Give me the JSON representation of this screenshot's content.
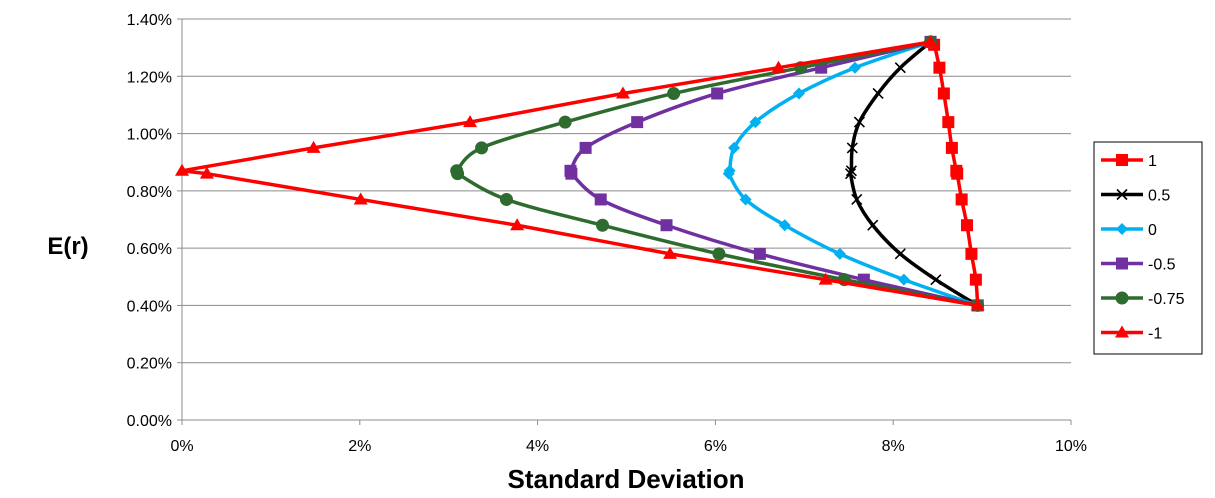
{
  "chart_data": {
    "type": "line",
    "xlabel": "Standard Deviation",
    "ylabel": "E(r)",
    "xlim": [
      0,
      10
    ],
    "ylim": [
      0,
      1.4
    ],
    "x_unit": "%",
    "y_unit": "%",
    "x_ticks": [
      "0%",
      "2%",
      "4%",
      "6%",
      "8%",
      "10%"
    ],
    "y_ticks": [
      "0.00%",
      "0.20%",
      "0.40%",
      "0.60%",
      "0.80%",
      "1.00%",
      "1.20%",
      "1.40%"
    ],
    "grid": "horizontal",
    "legend_position": "right",
    "series": [
      {
        "name": "1",
        "color": "#ff0000",
        "marker": "square",
        "x": [
          8.95,
          8.93,
          8.88,
          8.83,
          8.77,
          8.72,
          8.71,
          8.66,
          8.62,
          8.57,
          8.52,
          8.46,
          8.42
        ],
        "y": [
          0.4,
          0.49,
          0.58,
          0.68,
          0.77,
          0.86,
          0.87,
          0.95,
          1.04,
          1.14,
          1.23,
          1.31,
          1.32
        ]
      },
      {
        "name": "0.5",
        "color": "#000000",
        "marker": "x",
        "x": [
          8.95,
          8.48,
          8.08,
          7.77,
          7.59,
          7.52,
          7.53,
          7.54,
          7.62,
          7.83,
          8.08,
          8.42
        ],
        "y": [
          0.4,
          0.49,
          0.58,
          0.68,
          0.77,
          0.86,
          0.87,
          0.95,
          1.04,
          1.14,
          1.23,
          1.32
        ]
      },
      {
        "name": "0",
        "color": "#00b0f0",
        "marker": "diamond",
        "x": [
          8.95,
          8.12,
          7.4,
          6.78,
          6.34,
          6.15,
          6.16,
          6.21,
          6.45,
          6.94,
          7.57,
          8.42
        ],
        "y": [
          0.4,
          0.49,
          0.58,
          0.68,
          0.77,
          0.86,
          0.87,
          0.95,
          1.04,
          1.14,
          1.23,
          1.32
        ]
      },
      {
        "name": "-0.5",
        "color": "#7030a0",
        "marker": "square",
        "x": [
          8.95,
          7.67,
          6.5,
          5.45,
          4.71,
          4.38,
          4.37,
          4.54,
          5.12,
          6.02,
          7.19,
          8.42
        ],
        "y": [
          0.4,
          0.49,
          0.58,
          0.68,
          0.77,
          0.86,
          0.87,
          0.95,
          1.04,
          1.14,
          1.23,
          1.32
        ]
      },
      {
        "name": "-0.75",
        "color": "#2e6b2e",
        "marker": "circle",
        "x": [
          8.95,
          7.45,
          6.04,
          4.73,
          3.65,
          3.1,
          3.09,
          3.37,
          4.31,
          5.53,
          6.96,
          8.42
        ],
        "y": [
          0.4,
          0.49,
          0.58,
          0.68,
          0.77,
          0.86,
          0.87,
          0.95,
          1.04,
          1.14,
          1.23,
          1.32
        ]
      },
      {
        "name": "-1",
        "color": "#ff0000",
        "marker": "triangle",
        "x": [
          8.95,
          7.24,
          5.49,
          3.77,
          2.01,
          0.28,
          0.0,
          1.48,
          3.24,
          4.96,
          6.71,
          8.42
        ],
        "y": [
          0.4,
          0.49,
          0.58,
          0.68,
          0.77,
          0.86,
          0.87,
          0.95,
          1.04,
          1.14,
          1.23,
          1.32
        ]
      }
    ]
  }
}
